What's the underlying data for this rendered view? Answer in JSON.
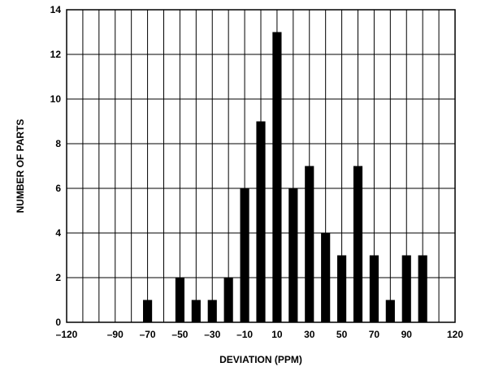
{
  "chart_data": {
    "type": "bar",
    "title": "",
    "xlabel": "DEVIATION (PPM)",
    "ylabel": "NUMBER OF PARTS",
    "xlim": [
      -120,
      120
    ],
    "ylim": [
      0,
      14
    ],
    "grid": true,
    "x_ticks": [
      -120,
      -90,
      -70,
      -50,
      -30,
      -10,
      10,
      30,
      50,
      70,
      90,
      120
    ],
    "x_tick_labels": [
      "–120",
      "–90",
      "–70",
      "–50",
      "–30",
      "–10",
      "10",
      "30",
      "50",
      "70",
      "90",
      "120"
    ],
    "y_ticks": [
      0,
      2,
      4,
      6,
      8,
      10,
      12,
      14
    ],
    "y_tick_labels": [
      "0",
      "2",
      "4",
      "6",
      "8",
      "10",
      "12",
      "14"
    ],
    "x": [
      -70,
      -50,
      -40,
      -30,
      -20,
      -10,
      0,
      10,
      20,
      30,
      40,
      50,
      60,
      70,
      80,
      90,
      100
    ],
    "values": [
      1,
      2,
      1,
      1,
      2,
      6,
      9,
      13,
      6,
      7,
      4,
      3,
      7,
      3,
      1,
      3,
      3
    ],
    "bar_color": "#000000",
    "grid_color": "#000000"
  }
}
